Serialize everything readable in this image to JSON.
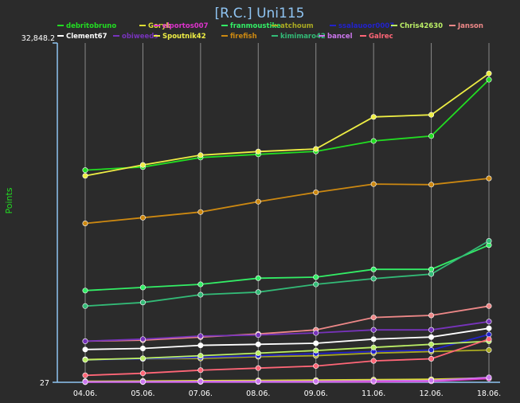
{
  "chart_data": {
    "type": "line",
    "title": "[R.C.] Uni115",
    "ylabel": "Points",
    "xlabel": "",
    "categories": [
      "04.06.",
      "05.06.",
      "07.06.",
      "08.06.",
      "09.06.",
      "11.06.",
      "12.06.",
      "18.06."
    ],
    "y_tick_labels": [
      "32,848.2",
      "27"
    ],
    "ylim": [
      27,
      32848.2
    ],
    "grid": true,
    "legend_position": "top",
    "series": [
      {
        "name": "debritobruno",
        "color": "#22dd22",
        "values": [
          20550,
          20850,
          21770,
          22080,
          22360,
          23370,
          23850,
          29300
        ]
      },
      {
        "name": "Goryk",
        "color": "#dddd33",
        "values": [
          130,
          150,
          190,
          210,
          240,
          290,
          320,
          450
        ]
      },
      {
        "name": "elportos007",
        "color": "#dd33cc",
        "values": [
          40,
          50,
          60,
          65,
          70,
          80,
          120,
          380
        ]
      },
      {
        "name": "franmoustike",
        "color": "#33ee66",
        "values": [
          8900,
          9200,
          9500,
          10100,
          10200,
          10950,
          10950,
          13300
        ]
      },
      {
        "name": "atchoum",
        "color": "#aaaa22",
        "values": [
          2250,
          2300,
          2330,
          2500,
          2600,
          2850,
          3000,
          3150
        ]
      },
      {
        "name": "ssalauoor0007",
        "color": "#2222cc",
        "values": [
          2200,
          2300,
          2450,
          2600,
          2800,
          3000,
          3150,
          4650
        ]
      },
      {
        "name": "Chris42630",
        "color": "#bbee66",
        "values": [
          2200,
          2350,
          2600,
          2850,
          3100,
          3400,
          3700,
          4000
        ]
      },
      {
        "name": "Janson",
        "color": "#ee8888",
        "values": [
          4000,
          4100,
          4400,
          4700,
          5100,
          6300,
          6500,
          7400
        ]
      },
      {
        "name": "Clement67",
        "color": "#ffffff",
        "values": [
          3200,
          3300,
          3600,
          3700,
          3800,
          4200,
          4400,
          5250
        ]
      },
      {
        "name": "obiweeds",
        "color": "#7733bb",
        "values": [
          4000,
          4200,
          4500,
          4600,
          4800,
          5100,
          5100,
          5900
        ]
      },
      {
        "name": "Spoutnik42",
        "color": "#eeee44",
        "values": [
          20000,
          21050,
          22000,
          22350,
          22600,
          25700,
          25900,
          29900
        ]
      },
      {
        "name": "firefish",
        "color": "#cc8811",
        "values": [
          15400,
          15950,
          16500,
          17500,
          18400,
          19200,
          19150,
          19750
        ]
      },
      {
        "name": "kimimaro42",
        "color": "#33bb77",
        "values": [
          7400,
          7750,
          8500,
          8750,
          9500,
          10050,
          10500,
          13700
        ]
      },
      {
        "name": "bancel",
        "color": "#cc77ee",
        "values": [
          80,
          90,
          110,
          120,
          130,
          170,
          200,
          500
        ]
      },
      {
        "name": "Galrec",
        "color": "#ff6677",
        "values": [
          700,
          900,
          1200,
          1400,
          1600,
          2100,
          2300,
          4200
        ]
      }
    ]
  }
}
